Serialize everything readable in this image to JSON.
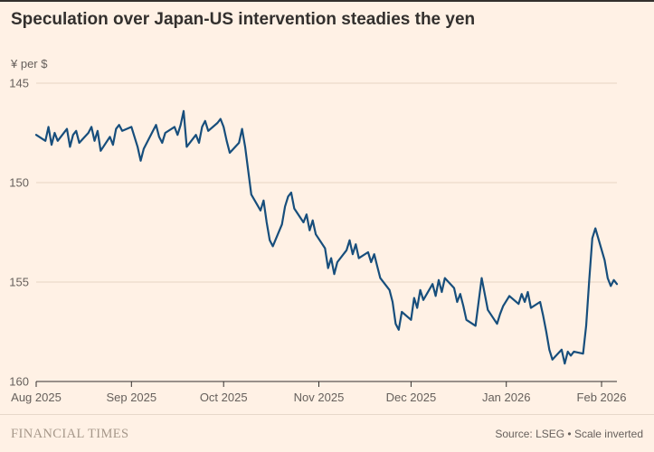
{
  "page": {
    "background_color": "#FFF1E5",
    "title": "Speculation over Japan-US intervention steadies the yen"
  },
  "chart": {
    "y_axis_label": "¥ per $"
  },
  "chart_data": {
    "type": "line",
    "title": "Speculation over Japan-US intervention steadies the yen",
    "xlabel": "",
    "ylabel": "¥ per $",
    "y_inverted": true,
    "ylim": [
      145,
      160
    ],
    "y_ticks": [
      145,
      150,
      155,
      160
    ],
    "x_ticks": [
      "Aug 2025",
      "Sep 2025",
      "Oct 2025",
      "Nov 2025",
      "Dec 2025",
      "Jan 2026",
      "Feb 2026"
    ],
    "x_tick_dates": [
      "2025-08-01",
      "2025-09-01",
      "2025-10-01",
      "2025-11-01",
      "2025-12-01",
      "2026-01-01",
      "2026-02-01"
    ],
    "grid": "horizontal",
    "legend": "none",
    "line_color": "#174E7C",
    "grid_color": "#E7D5C3",
    "axis_color": "#33302E",
    "tick_label_color": "#66605C",
    "series": [
      {
        "name": "Yen per US dollar",
        "points": [
          [
            "2025-08-01",
            147.6
          ],
          [
            "2025-08-04",
            147.9
          ],
          [
            "2025-08-05",
            147.2
          ],
          [
            "2025-08-06",
            148.1
          ],
          [
            "2025-08-07",
            147.5
          ],
          [
            "2025-08-08",
            147.9
          ],
          [
            "2025-08-11",
            147.3
          ],
          [
            "2025-08-12",
            148.2
          ],
          [
            "2025-08-13",
            147.6
          ],
          [
            "2025-08-14",
            147.4
          ],
          [
            "2025-08-15",
            148.0
          ],
          [
            "2025-08-18",
            147.5
          ],
          [
            "2025-08-19",
            147.2
          ],
          [
            "2025-08-20",
            147.9
          ],
          [
            "2025-08-21",
            147.4
          ],
          [
            "2025-08-22",
            148.4
          ],
          [
            "2025-08-25",
            147.7
          ],
          [
            "2025-08-26",
            148.1
          ],
          [
            "2025-08-27",
            147.3
          ],
          [
            "2025-08-28",
            147.1
          ],
          [
            "2025-08-29",
            147.4
          ],
          [
            "2025-09-01",
            147.2
          ],
          [
            "2025-09-02",
            147.7
          ],
          [
            "2025-09-03",
            148.2
          ],
          [
            "2025-09-04",
            148.9
          ],
          [
            "2025-09-05",
            148.3
          ],
          [
            "2025-09-08",
            147.4
          ],
          [
            "2025-09-09",
            147.1
          ],
          [
            "2025-09-10",
            147.7
          ],
          [
            "2025-09-11",
            148.0
          ],
          [
            "2025-09-12",
            147.5
          ],
          [
            "2025-09-15",
            147.2
          ],
          [
            "2025-09-16",
            147.6
          ],
          [
            "2025-09-17",
            147.1
          ],
          [
            "2025-09-18",
            146.4
          ],
          [
            "2025-09-19",
            148.2
          ],
          [
            "2025-09-22",
            147.6
          ],
          [
            "2025-09-23",
            148.0
          ],
          [
            "2025-09-24",
            147.2
          ],
          [
            "2025-09-25",
            146.9
          ],
          [
            "2025-09-26",
            147.4
          ],
          [
            "2025-09-29",
            147.0
          ],
          [
            "2025-09-30",
            146.8
          ],
          [
            "2025-10-01",
            147.2
          ],
          [
            "2025-10-02",
            147.9
          ],
          [
            "2025-10-03",
            148.5
          ],
          [
            "2025-10-06",
            148.0
          ],
          [
            "2025-10-07",
            147.3
          ],
          [
            "2025-10-08",
            148.2
          ],
          [
            "2025-10-09",
            149.4
          ],
          [
            "2025-10-10",
            150.6
          ],
          [
            "2025-10-13",
            151.4
          ],
          [
            "2025-10-14",
            150.9
          ],
          [
            "2025-10-15",
            152.0
          ],
          [
            "2025-10-16",
            152.9
          ],
          [
            "2025-10-17",
            153.2
          ],
          [
            "2025-10-20",
            152.1
          ],
          [
            "2025-10-21",
            151.2
          ],
          [
            "2025-10-22",
            150.7
          ],
          [
            "2025-10-23",
            150.5
          ],
          [
            "2025-10-24",
            151.3
          ],
          [
            "2025-10-27",
            152.0
          ],
          [
            "2025-10-28",
            151.6
          ],
          [
            "2025-10-29",
            152.4
          ],
          [
            "2025-10-30",
            151.9
          ],
          [
            "2025-10-31",
            152.6
          ],
          [
            "2025-11-03",
            153.3
          ],
          [
            "2025-11-04",
            154.3
          ],
          [
            "2025-11-05",
            153.8
          ],
          [
            "2025-11-06",
            154.6
          ],
          [
            "2025-11-07",
            154.0
          ],
          [
            "2025-11-10",
            153.4
          ],
          [
            "2025-11-11",
            152.9
          ],
          [
            "2025-11-12",
            153.6
          ],
          [
            "2025-11-13",
            153.1
          ],
          [
            "2025-11-14",
            153.8
          ],
          [
            "2025-11-17",
            153.5
          ],
          [
            "2025-11-18",
            154.0
          ],
          [
            "2025-11-19",
            153.6
          ],
          [
            "2025-11-20",
            154.2
          ],
          [
            "2025-11-21",
            154.8
          ],
          [
            "2025-11-24",
            155.4
          ],
          [
            "2025-11-25",
            156.0
          ],
          [
            "2025-11-26",
            157.1
          ],
          [
            "2025-11-27",
            157.4
          ],
          [
            "2025-11-28",
            156.5
          ],
          [
            "2025-12-01",
            156.9
          ],
          [
            "2025-12-02",
            155.8
          ],
          [
            "2025-12-03",
            156.3
          ],
          [
            "2025-12-04",
            155.4
          ],
          [
            "2025-12-05",
            155.9
          ],
          [
            "2025-12-08",
            155.1
          ],
          [
            "2025-12-09",
            155.7
          ],
          [
            "2025-12-10",
            154.9
          ],
          [
            "2025-12-11",
            155.5
          ],
          [
            "2025-12-12",
            154.8
          ],
          [
            "2025-12-15",
            155.3
          ],
          [
            "2025-12-16",
            156.0
          ],
          [
            "2025-12-17",
            155.6
          ],
          [
            "2025-12-18",
            156.2
          ],
          [
            "2025-12-19",
            156.9
          ],
          [
            "2025-12-22",
            157.2
          ],
          [
            "2025-12-23",
            156.0
          ],
          [
            "2025-12-24",
            154.8
          ],
          [
            "2025-12-26",
            156.4
          ],
          [
            "2025-12-29",
            157.1
          ],
          [
            "2025-12-30",
            156.6
          ],
          [
            "2025-12-31",
            156.2
          ],
          [
            "2026-01-02",
            155.7
          ],
          [
            "2026-01-05",
            156.1
          ],
          [
            "2026-01-06",
            155.6
          ],
          [
            "2026-01-07",
            156.0
          ],
          [
            "2026-01-08",
            155.5
          ],
          [
            "2026-01-09",
            156.3
          ],
          [
            "2026-01-12",
            156.0
          ],
          [
            "2026-01-13",
            156.7
          ],
          [
            "2026-01-14",
            157.5
          ],
          [
            "2026-01-15",
            158.4
          ],
          [
            "2026-01-16",
            158.9
          ],
          [
            "2026-01-19",
            158.4
          ],
          [
            "2026-01-20",
            159.1
          ],
          [
            "2026-01-21",
            158.5
          ],
          [
            "2026-01-22",
            158.7
          ],
          [
            "2026-01-23",
            158.5
          ],
          [
            "2026-01-26",
            158.6
          ],
          [
            "2026-01-27",
            157.2
          ],
          [
            "2026-01-28",
            154.9
          ],
          [
            "2026-01-29",
            152.8
          ],
          [
            "2026-01-30",
            152.3
          ],
          [
            "2026-02-02",
            153.9
          ],
          [
            "2026-02-03",
            154.8
          ],
          [
            "2026-02-04",
            155.2
          ],
          [
            "2026-02-05",
            154.9
          ],
          [
            "2026-02-06",
            155.1
          ]
        ]
      }
    ]
  },
  "footer": {
    "brand": "FINANCIAL TIMES",
    "source": "Source: LSEG • Scale inverted"
  }
}
